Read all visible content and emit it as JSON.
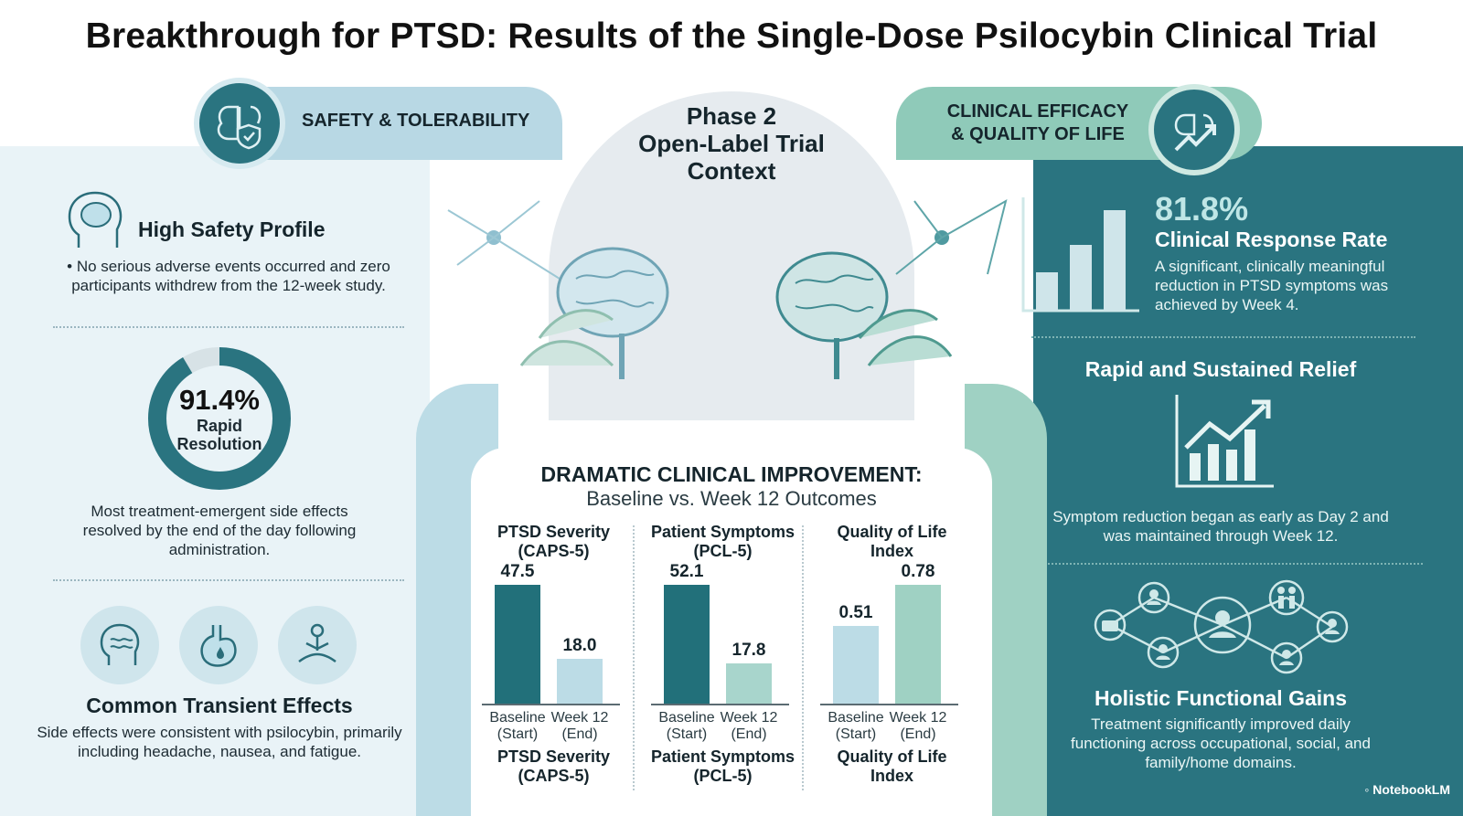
{
  "title": "Breakthrough for PTSD: Results of the Single-Dose Psilocybin Clinical Trial",
  "header": {
    "left_label": "SAFETY & TOLERABILITY",
    "center_lines": [
      "Phase 2",
      "Open-Label Trial",
      "Context"
    ],
    "right_lines": [
      "CLINICAL EFFICACY",
      "& QUALITY OF LIFE"
    ]
  },
  "left": {
    "safety_heading": "High Safety Profile",
    "safety_text": "• No serious adverse events occurred and zero participants withdrew from the 12-week study.",
    "donut": {
      "value": "91.4%",
      "label_lines": [
        "Rapid",
        "Resolution"
      ],
      "fraction": 0.914
    },
    "resolution_text": "Most treatment-emergent side effects resolved by the end of the day following administration.",
    "effects_heading": "Common Transient Effects",
    "effects_text": "Side effects were consistent with psilocybin, primarily including headache, nausea, and fatigue."
  },
  "center_chart": {
    "title": "DRAMATIC CLINICAL IMPROVEMENT:",
    "subtitle": "Baseline vs. Week 12 Outcomes"
  },
  "chart_data": [
    {
      "type": "bar",
      "title": "PTSD Severity (CAPS-5)",
      "categories": [
        "Baseline (Start)",
        "Week 12 (End)"
      ],
      "values": [
        47.5,
        18.0
      ],
      "value_labels": [
        "47.5",
        "18.0"
      ],
      "colors": [
        "#22707a",
        "#bcdce6"
      ],
      "category_lines": [
        [
          "Baseline",
          "(Start)"
        ],
        [
          "Week 12",
          "(End)"
        ]
      ],
      "footer_lines": [
        "PTSD Severity",
        "(CAPS-5)"
      ]
    },
    {
      "type": "bar",
      "title": "Patient Symptoms (PCL-5)",
      "categories": [
        "Baseline (Start)",
        "Week 12 (End)"
      ],
      "values": [
        52.1,
        17.8
      ],
      "value_labels": [
        "52.1",
        "17.8"
      ],
      "colors": [
        "#22707a",
        "#a8d5cc"
      ],
      "category_lines": [
        [
          "Baseline",
          "(Start)"
        ],
        [
          "Week 12",
          "(End)"
        ]
      ],
      "footer_lines": [
        "Patient Symptoms",
        "(PCL-5)"
      ]
    },
    {
      "type": "bar",
      "title": "Quality of Life Index",
      "categories": [
        "Baseline (Start)",
        "Week 12 (End)"
      ],
      "values": [
        0.51,
        0.78
      ],
      "value_labels": [
        "0.51",
        "0.78"
      ],
      "colors": [
        "#bcdce6",
        "#9fd1c3"
      ],
      "category_lines": [
        [
          "Baseline",
          "(Start)"
        ],
        [
          "Week 12",
          "(End)"
        ]
      ],
      "footer_lines": [
        "Quality of Life",
        "Index"
      ]
    }
  ],
  "right": {
    "response_value": "81.8%",
    "response_label": "Clinical Response Rate",
    "response_text": "A significant, clinically meaningful reduction in PTSD symptoms was achieved by Week 4.",
    "relief_heading": "Rapid and Sustained Relief",
    "relief_text": "Symptom reduction began as early as Day 2 and was maintained through Week 12.",
    "gains_heading": "Holistic Functional Gains",
    "gains_text": "Treatment significantly improved daily functioning across occupational, social, and family/home domains."
  },
  "brand": "NotebookLM"
}
